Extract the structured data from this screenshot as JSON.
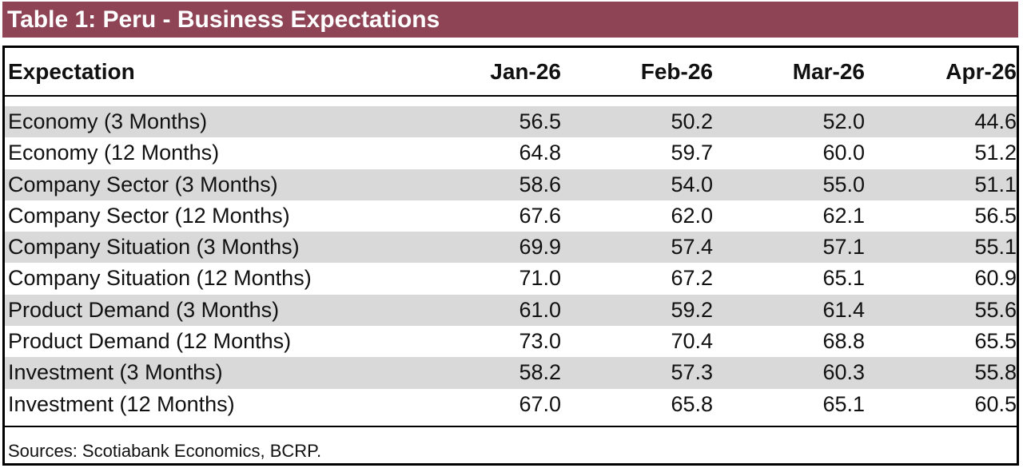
{
  "title": "Table 1: Peru - Business Expectations",
  "columns": [
    "Expectation",
    "Jan-26",
    "Feb-26",
    "Mar-26",
    "Apr-26"
  ],
  "rows": [
    {
      "label": "Economy (3 Months)",
      "values": [
        "56.5",
        "50.2",
        "52.0",
        "44.6"
      ]
    },
    {
      "label": "Economy (12 Months)",
      "values": [
        "64.8",
        "59.7",
        "60.0",
        "51.2"
      ]
    },
    {
      "label": "Company Sector (3 Months)",
      "values": [
        "58.6",
        "54.0",
        "55.0",
        "51.1"
      ]
    },
    {
      "label": "Company Sector (12 Months)",
      "values": [
        "67.6",
        "62.0",
        "62.1",
        "56.5"
      ]
    },
    {
      "label": "Company Situation (3 Months)",
      "values": [
        "69.9",
        "57.4",
        "57.1",
        "55.1"
      ]
    },
    {
      "label": "Company Situation (12 Months)",
      "values": [
        "71.0",
        "67.2",
        "65.1",
        "60.9"
      ]
    },
    {
      "label": "Product Demand (3 Months)",
      "values": [
        "61.0",
        "59.2",
        "61.4",
        "55.6"
      ]
    },
    {
      "label": "Product Demand (12 Months)",
      "values": [
        "73.0",
        "70.4",
        "68.8",
        "65.5"
      ]
    },
    {
      "label": "Investment (3 Months)",
      "values": [
        "58.2",
        "57.3",
        "60.3",
        "55.8"
      ]
    },
    {
      "label": "Investment (12 Months)",
      "values": [
        "67.0",
        "65.8",
        "65.1",
        "60.5"
      ]
    }
  ],
  "source": "Sources: Scotiabank Economics, BCRP.",
  "colors": {
    "title_bar": "#8e4455",
    "row_shade": "#d9d9d9"
  }
}
